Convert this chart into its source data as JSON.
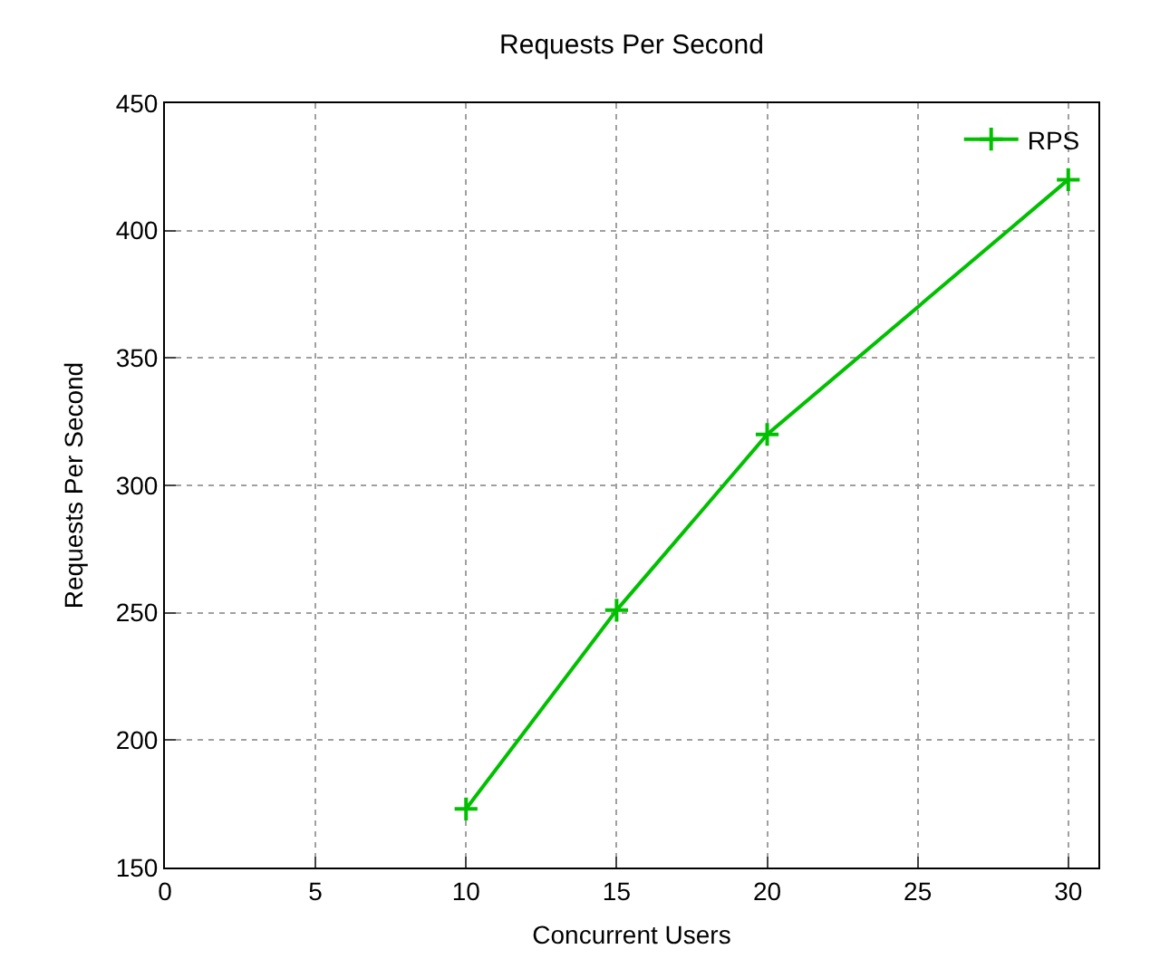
{
  "chart_data": {
    "type": "line",
    "title": "Requests Per Second",
    "xlabel": "Concurrent Users",
    "ylabel": "Requests Per Second",
    "x": [
      10,
      15,
      20,
      30
    ],
    "series": [
      {
        "name": "RPS",
        "color": "#00c000",
        "values": [
          173,
          251,
          320,
          420
        ]
      }
    ],
    "xlim": [
      0,
      31
    ],
    "xticks": [
      0,
      5,
      10,
      15,
      20,
      25,
      30
    ],
    "ylim": [
      150,
      450
    ],
    "yticks": [
      150,
      200,
      250,
      300,
      350,
      400,
      450
    ],
    "grid": true,
    "legend": "top right",
    "marker": "cross",
    "line_style": "solid"
  }
}
